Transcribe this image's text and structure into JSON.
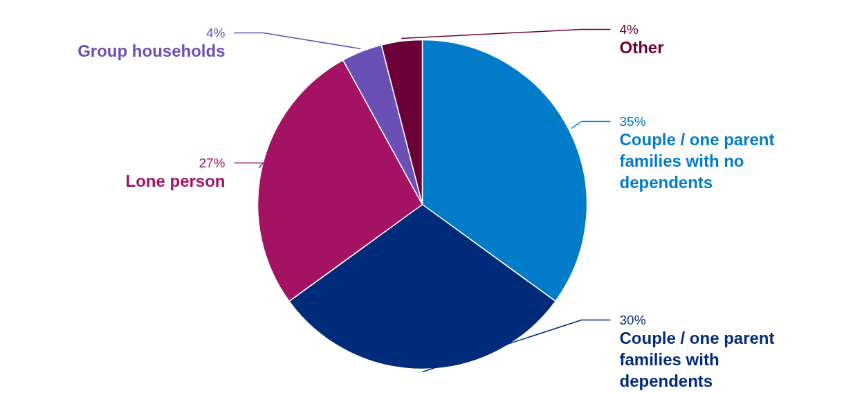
{
  "chart_data": {
    "type": "pie",
    "categories": [
      "Couple / one parent families with no dependents",
      "Couple / one parent families with dependents",
      "Lone person",
      "Group households",
      "Other"
    ],
    "values": [
      35,
      30,
      27,
      4,
      4
    ],
    "colors": [
      "#027bc8",
      "#002a7a",
      "#a31263",
      "#6a4fb5",
      "#6b0038"
    ],
    "value_labels": [
      "35%",
      "30%",
      "27%",
      "4%",
      "4%"
    ]
  }
}
